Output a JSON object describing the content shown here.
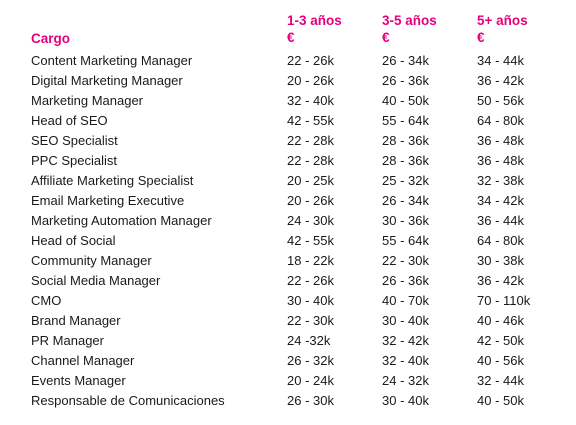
{
  "header": {
    "role_label": "Cargo",
    "col1_line1": "1-3 años",
    "col1_line2": "€",
    "col2_line1": "3-5 años",
    "col2_line2": "€",
    "col3_line1": "5+ años",
    "col3_line2": "€"
  },
  "colors": {
    "header_accent": "#e6007e",
    "body_text": "#1a1a1a"
  },
  "rows": [
    {
      "role": "Content Marketing Manager",
      "y1_3": "22 - 26k",
      "y3_5": "26 - 34k",
      "y5_plus": "34 - 44k"
    },
    {
      "role": "Digital Marketing Manager",
      "y1_3": "20 - 26k",
      "y3_5": "26 - 36k",
      "y5_plus": "36 - 42k"
    },
    {
      "role": "Marketing Manager",
      "y1_3": "32 - 40k",
      "y3_5": "40 - 50k",
      "y5_plus": "50 - 56k"
    },
    {
      "role": "Head of SEO",
      "y1_3": "42 - 55k",
      "y3_5": "55 - 64k",
      "y5_plus": "64 - 80k"
    },
    {
      "role": "SEO Specialist",
      "y1_3": "22 - 28k",
      "y3_5": "28 - 36k",
      "y5_plus": "36 - 48k"
    },
    {
      "role": "PPC Specialist",
      "y1_3": "22 - 28k",
      "y3_5": "28 - 36k",
      "y5_plus": "36 - 48k"
    },
    {
      "role": "Affiliate Marketing Specialist",
      "y1_3": "20 - 25k",
      "y3_5": "25 - 32k",
      "y5_plus": "32 - 38k"
    },
    {
      "role": "Email Marketing Executive",
      "y1_3": "20 - 26k",
      "y3_5": "26 - 34k",
      "y5_plus": "34 - 42k"
    },
    {
      "role": "Marketing Automation Manager",
      "y1_3": "24 - 30k",
      "y3_5": "30 - 36k",
      "y5_plus": "36 - 44k"
    },
    {
      "role": "Head of Social",
      "y1_3": "42 - 55k",
      "y3_5": "55 - 64k",
      "y5_plus": "64 - 80k"
    },
    {
      "role": "Community Manager",
      "y1_3": "18 - 22k",
      "y3_5": "22 - 30k",
      "y5_plus": "30 - 38k"
    },
    {
      "role": "Social Media Manager",
      "y1_3": "22 - 26k",
      "y3_5": "26 - 36k",
      "y5_plus": "36 - 42k"
    },
    {
      "role": "CMO",
      "y1_3": "30 - 40k",
      "y3_5": "40 - 70k",
      "y5_plus": "70 - 110k"
    },
    {
      "role": "Brand Manager",
      "y1_3": "22 - 30k",
      "y3_5": "30 - 40k",
      "y5_plus": "40 - 46k"
    },
    {
      "role": "PR Manager",
      "y1_3": "24 -32k",
      "y3_5": "32 - 42k",
      "y5_plus": "42 - 50k"
    },
    {
      "role": "Channel Manager",
      "y1_3": "26 - 32k",
      "y3_5": "32 - 40k",
      "y5_plus": "40 - 56k"
    },
    {
      "role": "Events Manager",
      "y1_3": "20 - 24k",
      "y3_5": "24 - 32k",
      "y5_plus": "32 - 44k"
    },
    {
      "role": "Responsable de Comunicaciones",
      "y1_3": "26 - 30k",
      "y3_5": "30 - 40k",
      "y5_plus": "40 - 50k"
    }
  ]
}
